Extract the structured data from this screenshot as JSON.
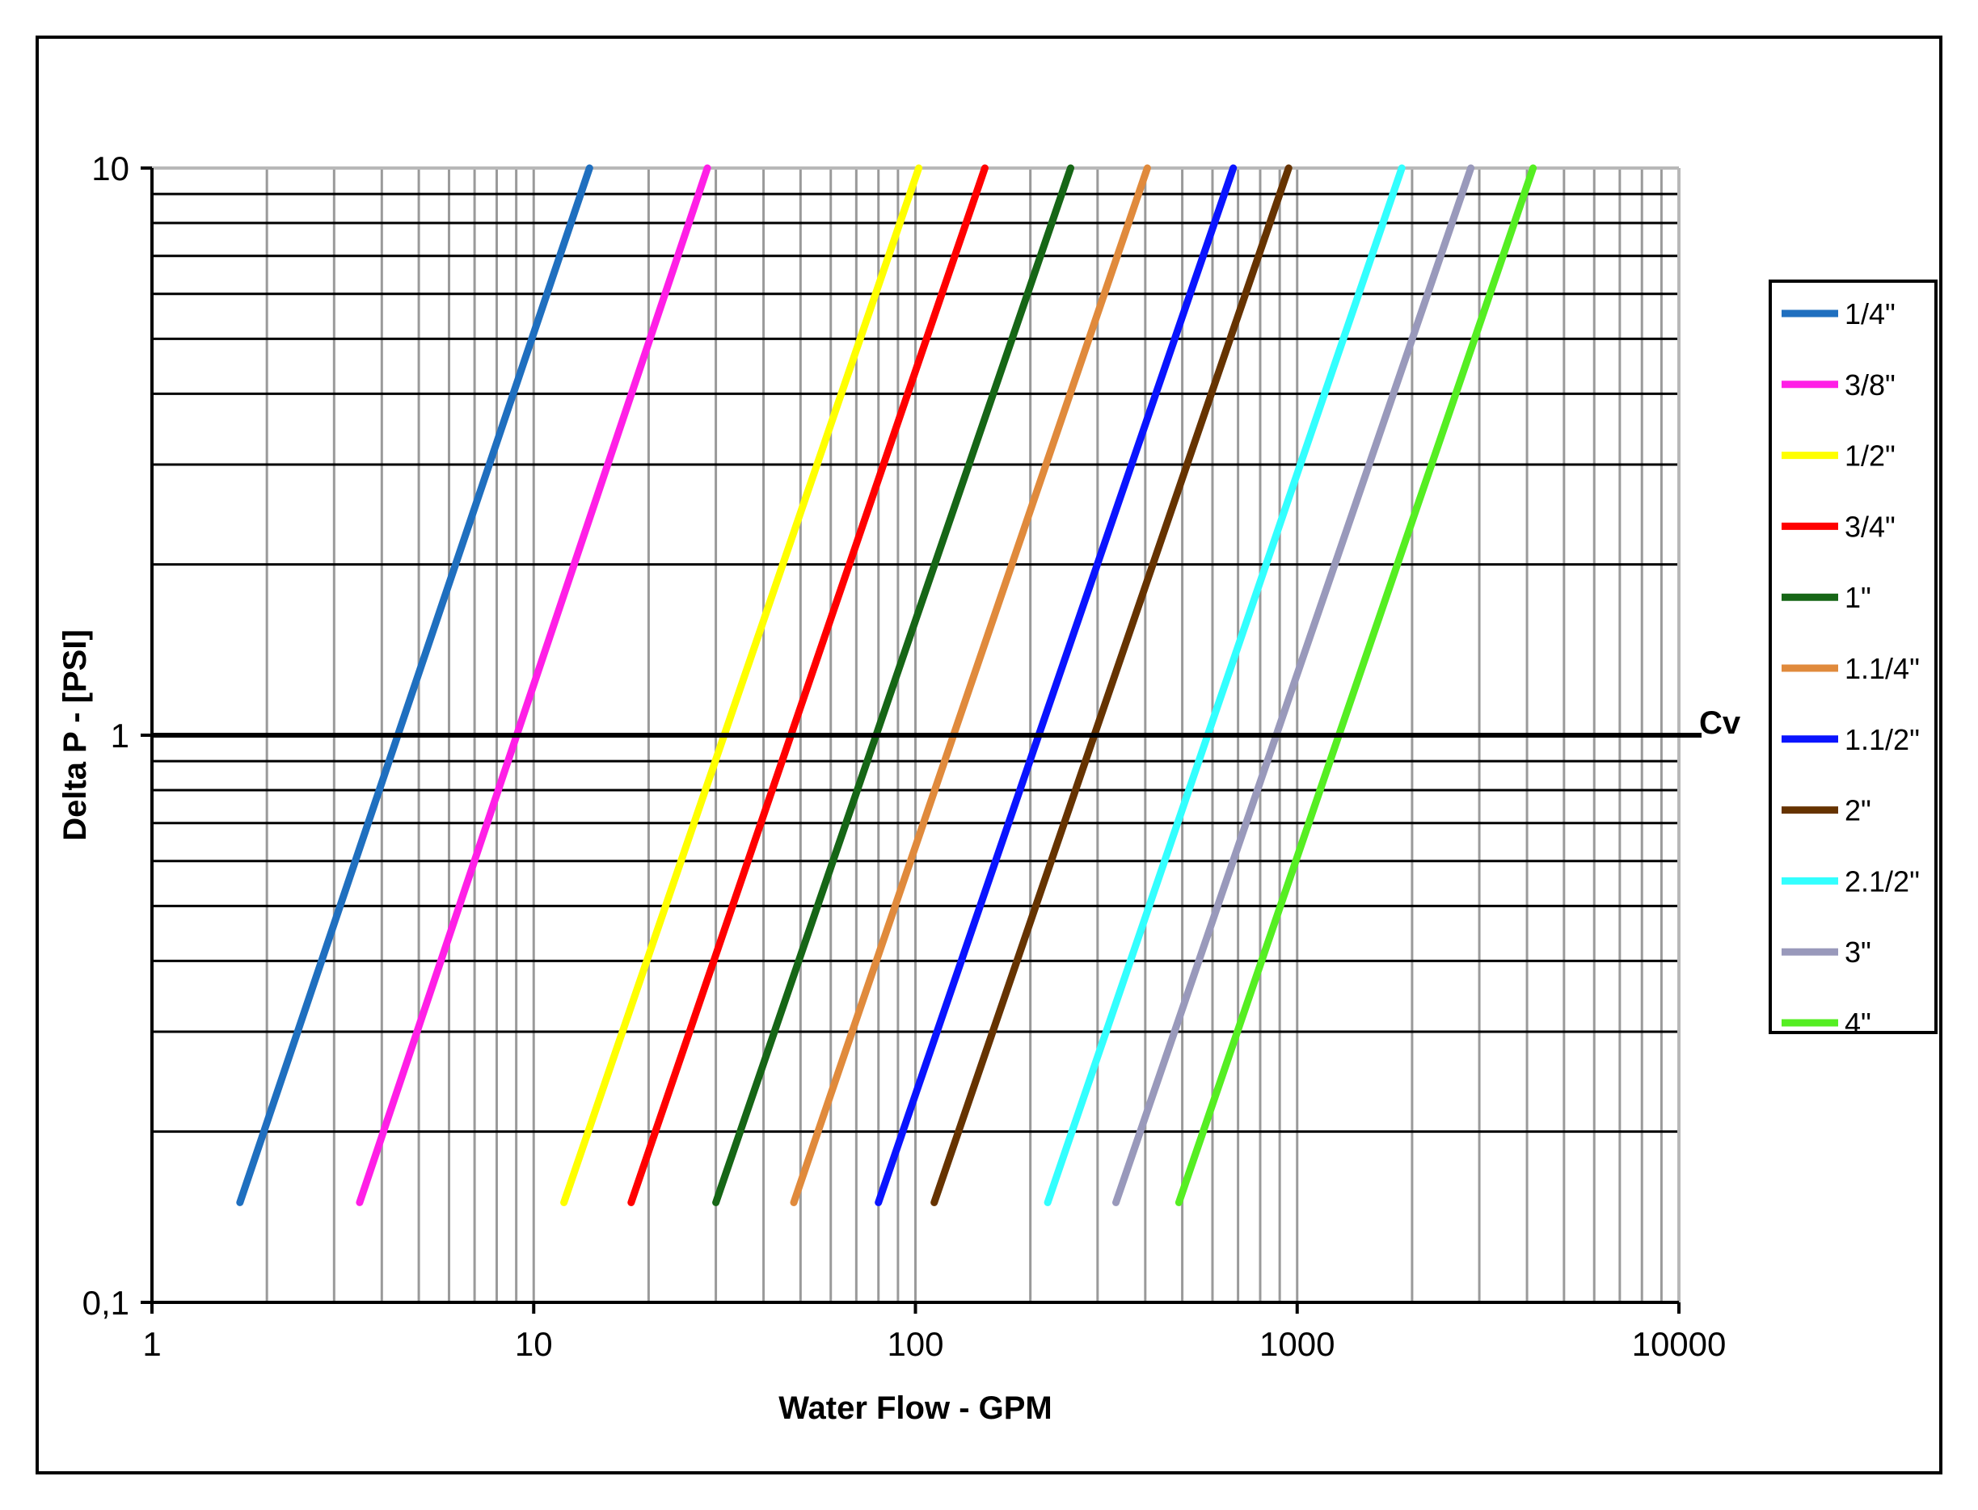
{
  "chart_data": {
    "type": "line",
    "xlabel": "Water Flow - GPM",
    "ylabel": "Delta P - [PSI]",
    "x_scale": "log",
    "y_scale": "log",
    "xlim": [
      1,
      10000
    ],
    "ylim": [
      0.1,
      10
    ],
    "x_ticks": [
      1,
      10,
      100,
      1000,
      10000
    ],
    "x_tick_labels": [
      "1",
      "10",
      "100",
      "1000",
      "10000"
    ],
    "y_ticks": [
      0.1,
      1,
      10
    ],
    "y_tick_labels": [
      "0,1",
      "1",
      "10"
    ],
    "grid": true,
    "legend_position": "right",
    "reference_line": {
      "label": "Cv",
      "y": 1
    },
    "series": [
      {
        "name": "1/4\"",
        "color": "#1f6fbf",
        "x": [
          1.7,
          14
        ],
        "y": [
          0.15,
          10
        ]
      },
      {
        "name": "3/8\"",
        "color": "#ff1fe6",
        "x": [
          3.5,
          28.5
        ],
        "y": [
          0.15,
          10
        ]
      },
      {
        "name": "1/2\"",
        "color": "#ffff00",
        "x": [
          12,
          102
        ],
        "y": [
          0.15,
          10
        ]
      },
      {
        "name": "3/4\"",
        "color": "#ff0000",
        "x": [
          18,
          152
        ],
        "y": [
          0.15,
          10
        ]
      },
      {
        "name": "1\"",
        "color": "#166616",
        "x": [
          30,
          255
        ],
        "y": [
          0.15,
          10
        ]
      },
      {
        "name": "1.1/4\"",
        "color": "#e08a3c",
        "x": [
          48,
          405
        ],
        "y": [
          0.15,
          10
        ]
      },
      {
        "name": "1.1/2\"",
        "color": "#0a14ff",
        "x": [
          80,
          680
        ],
        "y": [
          0.15,
          10
        ]
      },
      {
        "name": "2\"",
        "color": "#663300",
        "x": [
          112,
          950
        ],
        "y": [
          0.15,
          10
        ]
      },
      {
        "name": "2.1/2\"",
        "color": "#33ffff",
        "x": [
          222,
          1880
        ],
        "y": [
          0.15,
          10
        ]
      },
      {
        "name": "3\"",
        "color": "#9999bb",
        "x": [
          335,
          2850
        ],
        "y": [
          0.15,
          10
        ]
      },
      {
        "name": "4\"",
        "color": "#55ee22",
        "x": [
          490,
          4150
        ],
        "y": [
          0.15,
          10
        ]
      }
    ]
  }
}
